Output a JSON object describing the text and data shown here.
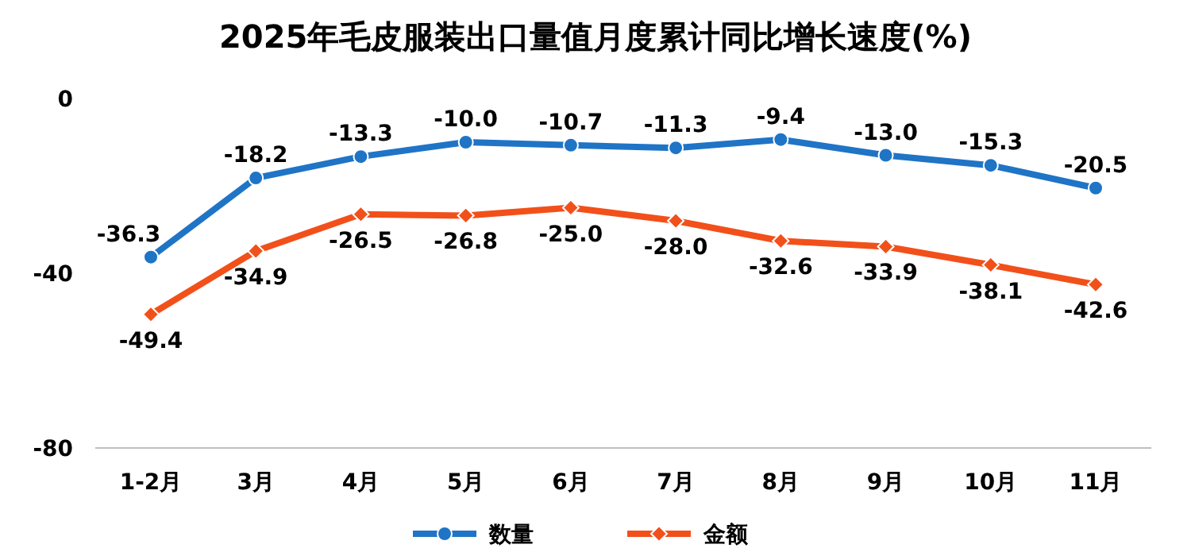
{
  "chart_data": {
    "type": "line",
    "title": "2025年毛皮服装出口量值月度累计同比增长速度(%)",
    "categories": [
      "1-2月",
      "3月",
      "4月",
      "5月",
      "6月",
      "7月",
      "8月",
      "9月",
      "10月",
      "11月"
    ],
    "series": [
      {
        "name": "数量",
        "color": "#1f74c6",
        "marker": "circle",
        "values": [
          -36.3,
          -18.2,
          -13.3,
          -10.0,
          -10.7,
          -11.3,
          -9.4,
          -13.0,
          -15.3,
          -20.5
        ],
        "value_labels": [
          "-36.3",
          "-18.2",
          "-13.3",
          "-10.0",
          "-10.7",
          "-11.3",
          "-9.4",
          "-13.0",
          "-15.3",
          "-20.5"
        ]
      },
      {
        "name": "金额",
        "color": "#f2501a",
        "marker": "diamond",
        "values": [
          -49.4,
          -34.9,
          -26.5,
          -26.8,
          -25.0,
          -28.0,
          -32.6,
          -33.9,
          -38.1,
          -42.6
        ],
        "value_labels": [
          "-49.4",
          "-34.9",
          "-26.5",
          "-26.8",
          "-25.0",
          "-28.0",
          "-32.6",
          "-33.9",
          "-38.1",
          "-42.6"
        ]
      }
    ],
    "ylim": [
      -80,
      0
    ],
    "yticks": [
      0,
      -40,
      -80
    ],
    "grid": false,
    "legend": "bottom",
    "line_style": "solid"
  }
}
